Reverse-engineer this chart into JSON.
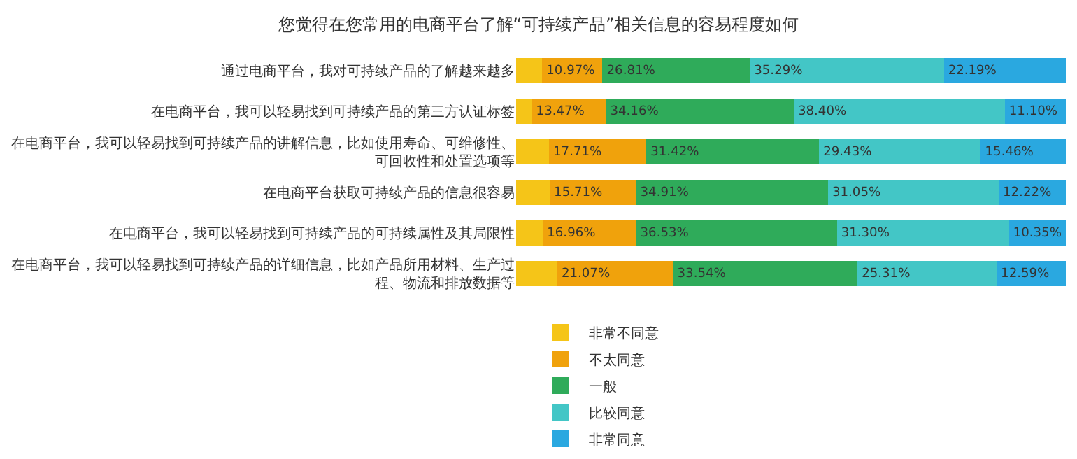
{
  "chart_data": {
    "type": "bar",
    "orientation": "horizontal",
    "stacked": true,
    "title": "您觉得在您常用的电商平台了解“可持续产品”相关信息的容易程度如何",
    "categories": [
      "通过电商平台，我对可持续产品的了解越来越多",
      "在电商平台，我可以轻易找到可持续产品的第三方认证标签",
      "在电商平台，我可以轻易找到可持续产品的讲解信息，比如使用寿命、可维修性、可回收性和处置选项等",
      "在电商平台获取可持续产品的信息很容易",
      "在电商平台，我可以轻易找到可持续产品的可持续属性及其局限性",
      "在电商平台，我可以轻易找到可持续产品的详细信息，比如产品所用材料、生产过程、物流和排放数据等"
    ],
    "series": [
      {
        "name": "非常不同意",
        "color": "#f5c518",
        "values": [
          4.74,
          2.87,
          5.98,
          6.11,
          4.86,
          7.49
        ],
        "value_labels": [
          null,
          null,
          null,
          null,
          null,
          null
        ]
      },
      {
        "name": "不太同意",
        "color": "#f0a20c",
        "values": [
          10.97,
          13.47,
          17.71,
          15.71,
          16.96,
          21.07
        ],
        "value_labels": [
          "10.97%",
          "13.47%",
          "17.71%",
          "15.71%",
          "16.96%",
          "21.07%"
        ]
      },
      {
        "name": "一般",
        "color": "#2fab5a",
        "values": [
          26.81,
          34.16,
          31.42,
          34.91,
          36.53,
          33.54
        ],
        "value_labels": [
          "26.81%",
          "34.16%",
          "31.42%",
          "34.91%",
          "36.53%",
          "33.54%"
        ]
      },
      {
        "name": "比较同意",
        "color": "#43c6c6",
        "values": [
          35.29,
          38.4,
          29.43,
          31.05,
          31.3,
          25.31
        ],
        "value_labels": [
          "35.29%",
          "38.40%",
          "29.43%",
          "31.05%",
          "31.30%",
          "25.31%"
        ]
      },
      {
        "name": "非常同意",
        "color": "#2aa8e0",
        "values": [
          22.19,
          11.1,
          15.46,
          12.22,
          10.35,
          12.59
        ],
        "value_labels": [
          "22.19%",
          "11.10%",
          "15.46%",
          "12.22%",
          "10.35%",
          "12.59%"
        ]
      }
    ],
    "xlim": [
      0,
      100
    ],
    "tick_labels": "y",
    "legend": "bottom"
  }
}
